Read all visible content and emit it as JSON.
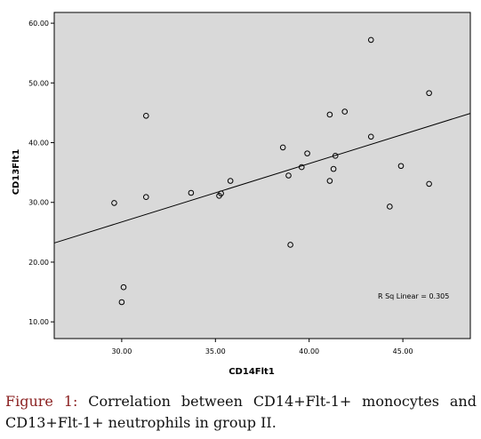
{
  "chart_data": {
    "type": "scatter",
    "xlabel": "CD14Flt1",
    "ylabel": "CD13Flt1",
    "xlim": [
      26.4,
      48.6
    ],
    "ylim": [
      7.2,
      61.8
    ],
    "x_ticks": [
      "30.00",
      "35.00",
      "40.00",
      "45.00"
    ],
    "y_ticks": [
      "10.00",
      "20.00",
      "30.00",
      "40.00",
      "50.00",
      "60.00"
    ],
    "points": [
      {
        "x": 29.6,
        "y": 29.9
      },
      {
        "x": 30.0,
        "y": 13.3
      },
      {
        "x": 30.1,
        "y": 15.8
      },
      {
        "x": 31.3,
        "y": 44.5
      },
      {
        "x": 31.3,
        "y": 30.9
      },
      {
        "x": 33.7,
        "y": 31.6
      },
      {
        "x": 35.2,
        "y": 31.1
      },
      {
        "x": 35.3,
        "y": 31.5
      },
      {
        "x": 35.8,
        "y": 33.6
      },
      {
        "x": 38.6,
        "y": 39.2
      },
      {
        "x": 38.9,
        "y": 34.5
      },
      {
        "x": 39.0,
        "y": 22.9
      },
      {
        "x": 39.6,
        "y": 35.9
      },
      {
        "x": 39.9,
        "y": 38.2
      },
      {
        "x": 41.1,
        "y": 44.7
      },
      {
        "x": 41.1,
        "y": 33.6
      },
      {
        "x": 41.3,
        "y": 35.6
      },
      {
        "x": 41.4,
        "y": 37.8
      },
      {
        "x": 41.9,
        "y": 45.2
      },
      {
        "x": 43.3,
        "y": 57.2
      },
      {
        "x": 43.3,
        "y": 41.0
      },
      {
        "x": 44.3,
        "y": 29.3
      },
      {
        "x": 44.9,
        "y": 36.1
      },
      {
        "x": 46.4,
        "y": 48.3
      },
      {
        "x": 46.4,
        "y": 33.1
      }
    ],
    "fit_line": {
      "x": [
        26.4,
        48.6
      ],
      "y": [
        23.2,
        44.9
      ]
    },
    "annotation": "R Sq Linear = 0.305",
    "grid": false,
    "colors": {
      "plot_background": "#d9d9d9",
      "marker_edge": "#000000",
      "line": "#000000"
    }
  },
  "caption": {
    "label": "Figure 1:",
    "text": "Correlation between CD14+Flt-1+ monocytes and CD13+Flt-1+ neutrophils in group II."
  }
}
